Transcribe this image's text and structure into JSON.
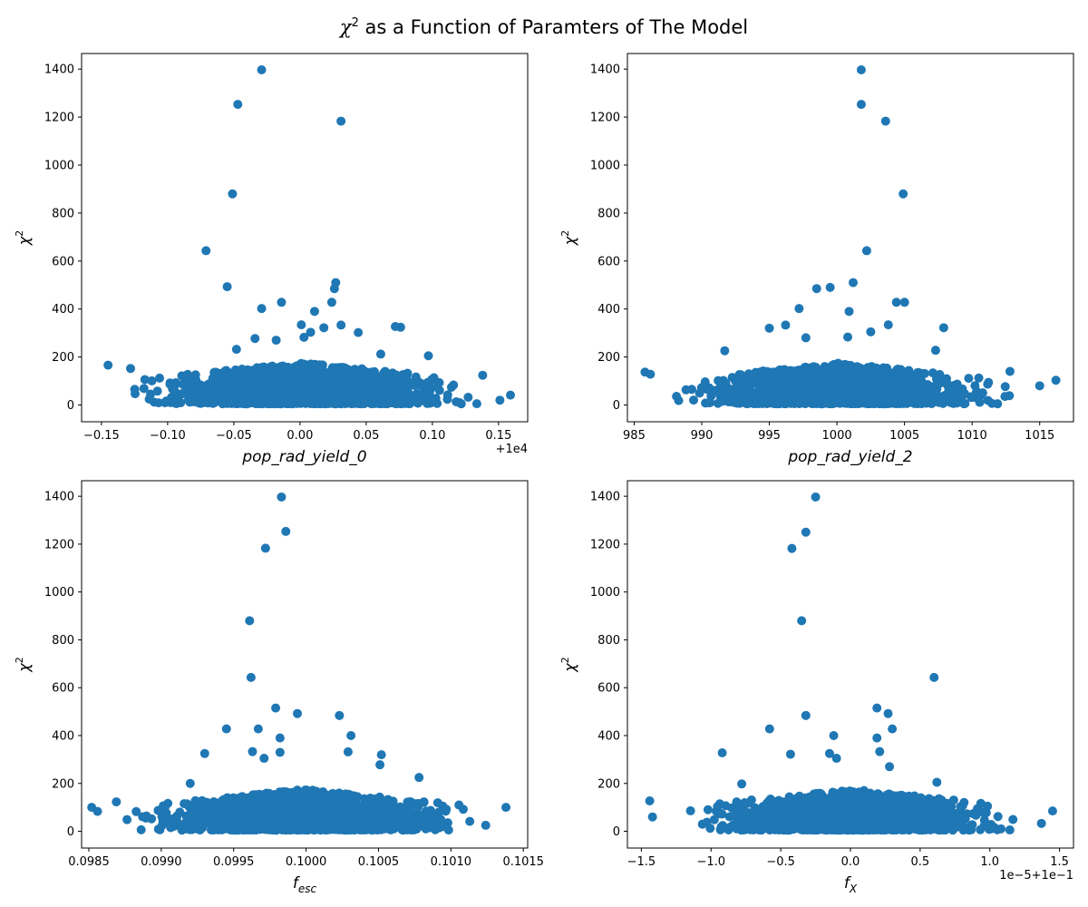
{
  "figure": {
    "title": "χ² as a Function of Paramters of The Model"
  },
  "chart_data": [
    {
      "type": "scatter",
      "xlabel": "pop_rad_yield_0",
      "ylabel": "χ²",
      "x_offset_label": "+1e4",
      "xlim": [
        -0.165,
        0.172
      ],
      "ylim": [
        -70,
        1465
      ],
      "xticks": [
        -0.15,
        -0.1,
        -0.05,
        0.0,
        0.05,
        0.1,
        0.15
      ],
      "xtick_labels": [
        "−0.15",
        "−0.10",
        "−0.05",
        "0.00",
        "0.05",
        "0.10",
        "0.15"
      ],
      "yticks": [
        0,
        200,
        400,
        600,
        800,
        1000,
        1200,
        1400
      ],
      "ytick_labels": [
        "0",
        "200",
        "400",
        "600",
        "800",
        "1000",
        "1200",
        "1400"
      ],
      "color": "#1f77b4",
      "points": [
        {
          "x": -0.029,
          "y": 1397
        },
        {
          "x": -0.047,
          "y": 1253
        },
        {
          "x": 0.031,
          "y": 1183
        },
        {
          "x": -0.051,
          "y": 880
        },
        {
          "x": -0.071,
          "y": 643
        },
        {
          "x": -0.055,
          "y": 493
        },
        {
          "x": 0.027,
          "y": 510
        },
        {
          "x": 0.026,
          "y": 485
        },
        {
          "x": 0.024,
          "y": 428
        },
        {
          "x": -0.014,
          "y": 428
        },
        {
          "x": -0.029,
          "y": 402
        },
        {
          "x": 0.011,
          "y": 390
        },
        {
          "x": 0.031,
          "y": 333
        },
        {
          "x": 0.001,
          "y": 334
        },
        {
          "x": 0.072,
          "y": 327
        },
        {
          "x": 0.076,
          "y": 324
        },
        {
          "x": 0.018,
          "y": 322
        },
        {
          "x": 0.044,
          "y": 302
        },
        {
          "x": 0.008,
          "y": 303
        },
        {
          "x": 0.003,
          "y": 282
        },
        {
          "x": -0.034,
          "y": 277
        },
        {
          "x": -0.048,
          "y": 232
        },
        {
          "x": -0.018,
          "y": 270
        },
        {
          "x": 0.061,
          "y": 212
        },
        {
          "x": 0.097,
          "y": 205
        },
        {
          "x": -0.145,
          "y": 166
        },
        {
          "x": -0.128,
          "y": 152
        },
        {
          "x": 0.151,
          "y": 20
        },
        {
          "x": 0.159,
          "y": 41
        },
        {
          "x": 0.138,
          "y": 124
        }
      ],
      "cloud": {
        "x_range": [
          -0.14,
          0.145
        ],
        "y_range": [
          5,
          175
        ]
      }
    },
    {
      "type": "scatter",
      "xlabel": "pop_rad_yield_2",
      "ylabel": "χ²",
      "x_offset_label": "",
      "xlim": [
        984.5,
        1017.5
      ],
      "ylim": [
        -70,
        1465
      ],
      "xticks": [
        985,
        990,
        995,
        1000,
        1005,
        1010,
        1015
      ],
      "xtick_labels": [
        "985",
        "990",
        "995",
        "1000",
        "1005",
        "1010",
        "1015"
      ],
      "yticks": [
        0,
        200,
        400,
        600,
        800,
        1000,
        1200,
        1400
      ],
      "ytick_labels": [
        "0",
        "200",
        "400",
        "600",
        "800",
        "1000",
        "1200",
        "1400"
      ],
      "color": "#1f77b4",
      "points": [
        {
          "x": 1001.8,
          "y": 1397
        },
        {
          "x": 1001.8,
          "y": 1253
        },
        {
          "x": 1003.6,
          "y": 1183
        },
        {
          "x": 1004.9,
          "y": 880
        },
        {
          "x": 1002.2,
          "y": 643
        },
        {
          "x": 1001.2,
          "y": 510
        },
        {
          "x": 999.5,
          "y": 490
        },
        {
          "x": 998.5,
          "y": 485
        },
        {
          "x": 1004.4,
          "y": 428
        },
        {
          "x": 1005.0,
          "y": 428
        },
        {
          "x": 997.2,
          "y": 402
        },
        {
          "x": 1000.9,
          "y": 390
        },
        {
          "x": 1003.8,
          "y": 334
        },
        {
          "x": 996.2,
          "y": 333
        },
        {
          "x": 1007.9,
          "y": 322
        },
        {
          "x": 995.0,
          "y": 320
        },
        {
          "x": 1002.5,
          "y": 305
        },
        {
          "x": 997.7,
          "y": 280
        },
        {
          "x": 1000.8,
          "y": 283
        },
        {
          "x": 985.8,
          "y": 137
        },
        {
          "x": 986.2,
          "y": 128
        },
        {
          "x": 1015.0,
          "y": 80
        },
        {
          "x": 1016.2,
          "y": 103
        },
        {
          "x": 1012.8,
          "y": 140
        },
        {
          "x": 991.7,
          "y": 226
        },
        {
          "x": 1007.3,
          "y": 228
        }
      ],
      "cloud": {
        "x_range": [
          987.0,
          1013.5
        ],
        "y_range": [
          5,
          175
        ]
      }
    },
    {
      "type": "scatter",
      "xlabel": "f_esc",
      "ylabel": "χ²",
      "x_offset_label": "",
      "xlim": [
        0.09845,
        0.10153
      ],
      "ylim": [
        -70,
        1465
      ],
      "xticks": [
        0.0985,
        0.099,
        0.0995,
        0.1,
        0.1005,
        0.101,
        0.1015
      ],
      "xtick_labels": [
        "0.0985",
        "0.0990",
        "0.0995",
        "0.1000",
        "0.1005",
        "0.1010",
        "0.1015"
      ],
      "yticks": [
        0,
        200,
        400,
        600,
        800,
        1000,
        1200,
        1400
      ],
      "ytick_labels": [
        "0",
        "200",
        "400",
        "600",
        "800",
        "1000",
        "1200",
        "1400"
      ],
      "color": "#1f77b4",
      "points": [
        {
          "x": 0.09983,
          "y": 1397
        },
        {
          "x": 0.09986,
          "y": 1253
        },
        {
          "x": 0.09972,
          "y": 1183
        },
        {
          "x": 0.09961,
          "y": 880
        },
        {
          "x": 0.09962,
          "y": 643
        },
        {
          "x": 0.09979,
          "y": 515
        },
        {
          "x": 0.09994,
          "y": 492
        },
        {
          "x": 0.10023,
          "y": 484
        },
        {
          "x": 0.09945,
          "y": 428
        },
        {
          "x": 0.09967,
          "y": 428
        },
        {
          "x": 0.10031,
          "y": 400
        },
        {
          "x": 0.09982,
          "y": 390
        },
        {
          "x": 0.09982,
          "y": 330
        },
        {
          "x": 0.09963,
          "y": 333
        },
        {
          "x": 0.10052,
          "y": 320
        },
        {
          "x": 0.0993,
          "y": 325
        },
        {
          "x": 0.10029,
          "y": 332
        },
        {
          "x": 0.09971,
          "y": 305
        },
        {
          "x": 0.10051,
          "y": 278
        },
        {
          "x": 0.09852,
          "y": 100
        },
        {
          "x": 0.09856,
          "y": 83
        },
        {
          "x": 0.09869,
          "y": 123
        },
        {
          "x": 0.10138,
          "y": 100
        },
        {
          "x": 0.10124,
          "y": 25
        },
        {
          "x": 0.10078,
          "y": 225
        },
        {
          "x": 0.0992,
          "y": 200
        }
      ],
      "cloud": {
        "x_range": [
          0.0987,
          0.10128
        ],
        "y_range": [
          5,
          175
        ]
      }
    },
    {
      "type": "scatter",
      "xlabel": "f_X",
      "ylabel": "χ²",
      "x_offset_label": "1e−5+1e−1",
      "xlim": [
        -1.6,
        1.6
      ],
      "ylim": [
        -70,
        1465
      ],
      "xticks": [
        -1.5,
        -1.0,
        -0.5,
        0.0,
        0.5,
        1.0,
        1.5
      ],
      "xtick_labels": [
        "−1.5",
        "−1.0",
        "−0.5",
        "0.0",
        "0.5",
        "1.0",
        "1.5"
      ],
      "yticks": [
        0,
        200,
        400,
        600,
        800,
        1000,
        1200,
        1400
      ],
      "ytick_labels": [
        "0",
        "200",
        "400",
        "600",
        "800",
        "1000",
        "1200",
        "1400"
      ],
      "color": "#1f77b4",
      "points": [
        {
          "x": -0.25,
          "y": 1397
        },
        {
          "x": -0.32,
          "y": 1250
        },
        {
          "x": -0.42,
          "y": 1182
        },
        {
          "x": -0.35,
          "y": 880
        },
        {
          "x": 0.6,
          "y": 643
        },
        {
          "x": 0.19,
          "y": 515
        },
        {
          "x": 0.27,
          "y": 492
        },
        {
          "x": -0.32,
          "y": 484
        },
        {
          "x": -0.58,
          "y": 428
        },
        {
          "x": 0.3,
          "y": 428
        },
        {
          "x": -0.12,
          "y": 400
        },
        {
          "x": 0.19,
          "y": 390
        },
        {
          "x": -0.92,
          "y": 328
        },
        {
          "x": -0.43,
          "y": 322
        },
        {
          "x": 0.21,
          "y": 333
        },
        {
          "x": -0.15,
          "y": 325
        },
        {
          "x": -0.1,
          "y": 305
        },
        {
          "x": 0.28,
          "y": 270
        },
        {
          "x": -1.44,
          "y": 127
        },
        {
          "x": -1.42,
          "y": 60
        },
        {
          "x": 1.45,
          "y": 85
        },
        {
          "x": 1.37,
          "y": 33
        },
        {
          "x": 0.62,
          "y": 205
        },
        {
          "x": -0.78,
          "y": 198
        }
      ],
      "cloud": {
        "x_range": [
          -1.25,
          1.28
        ],
        "y_range": [
          5,
          175
        ]
      }
    }
  ]
}
